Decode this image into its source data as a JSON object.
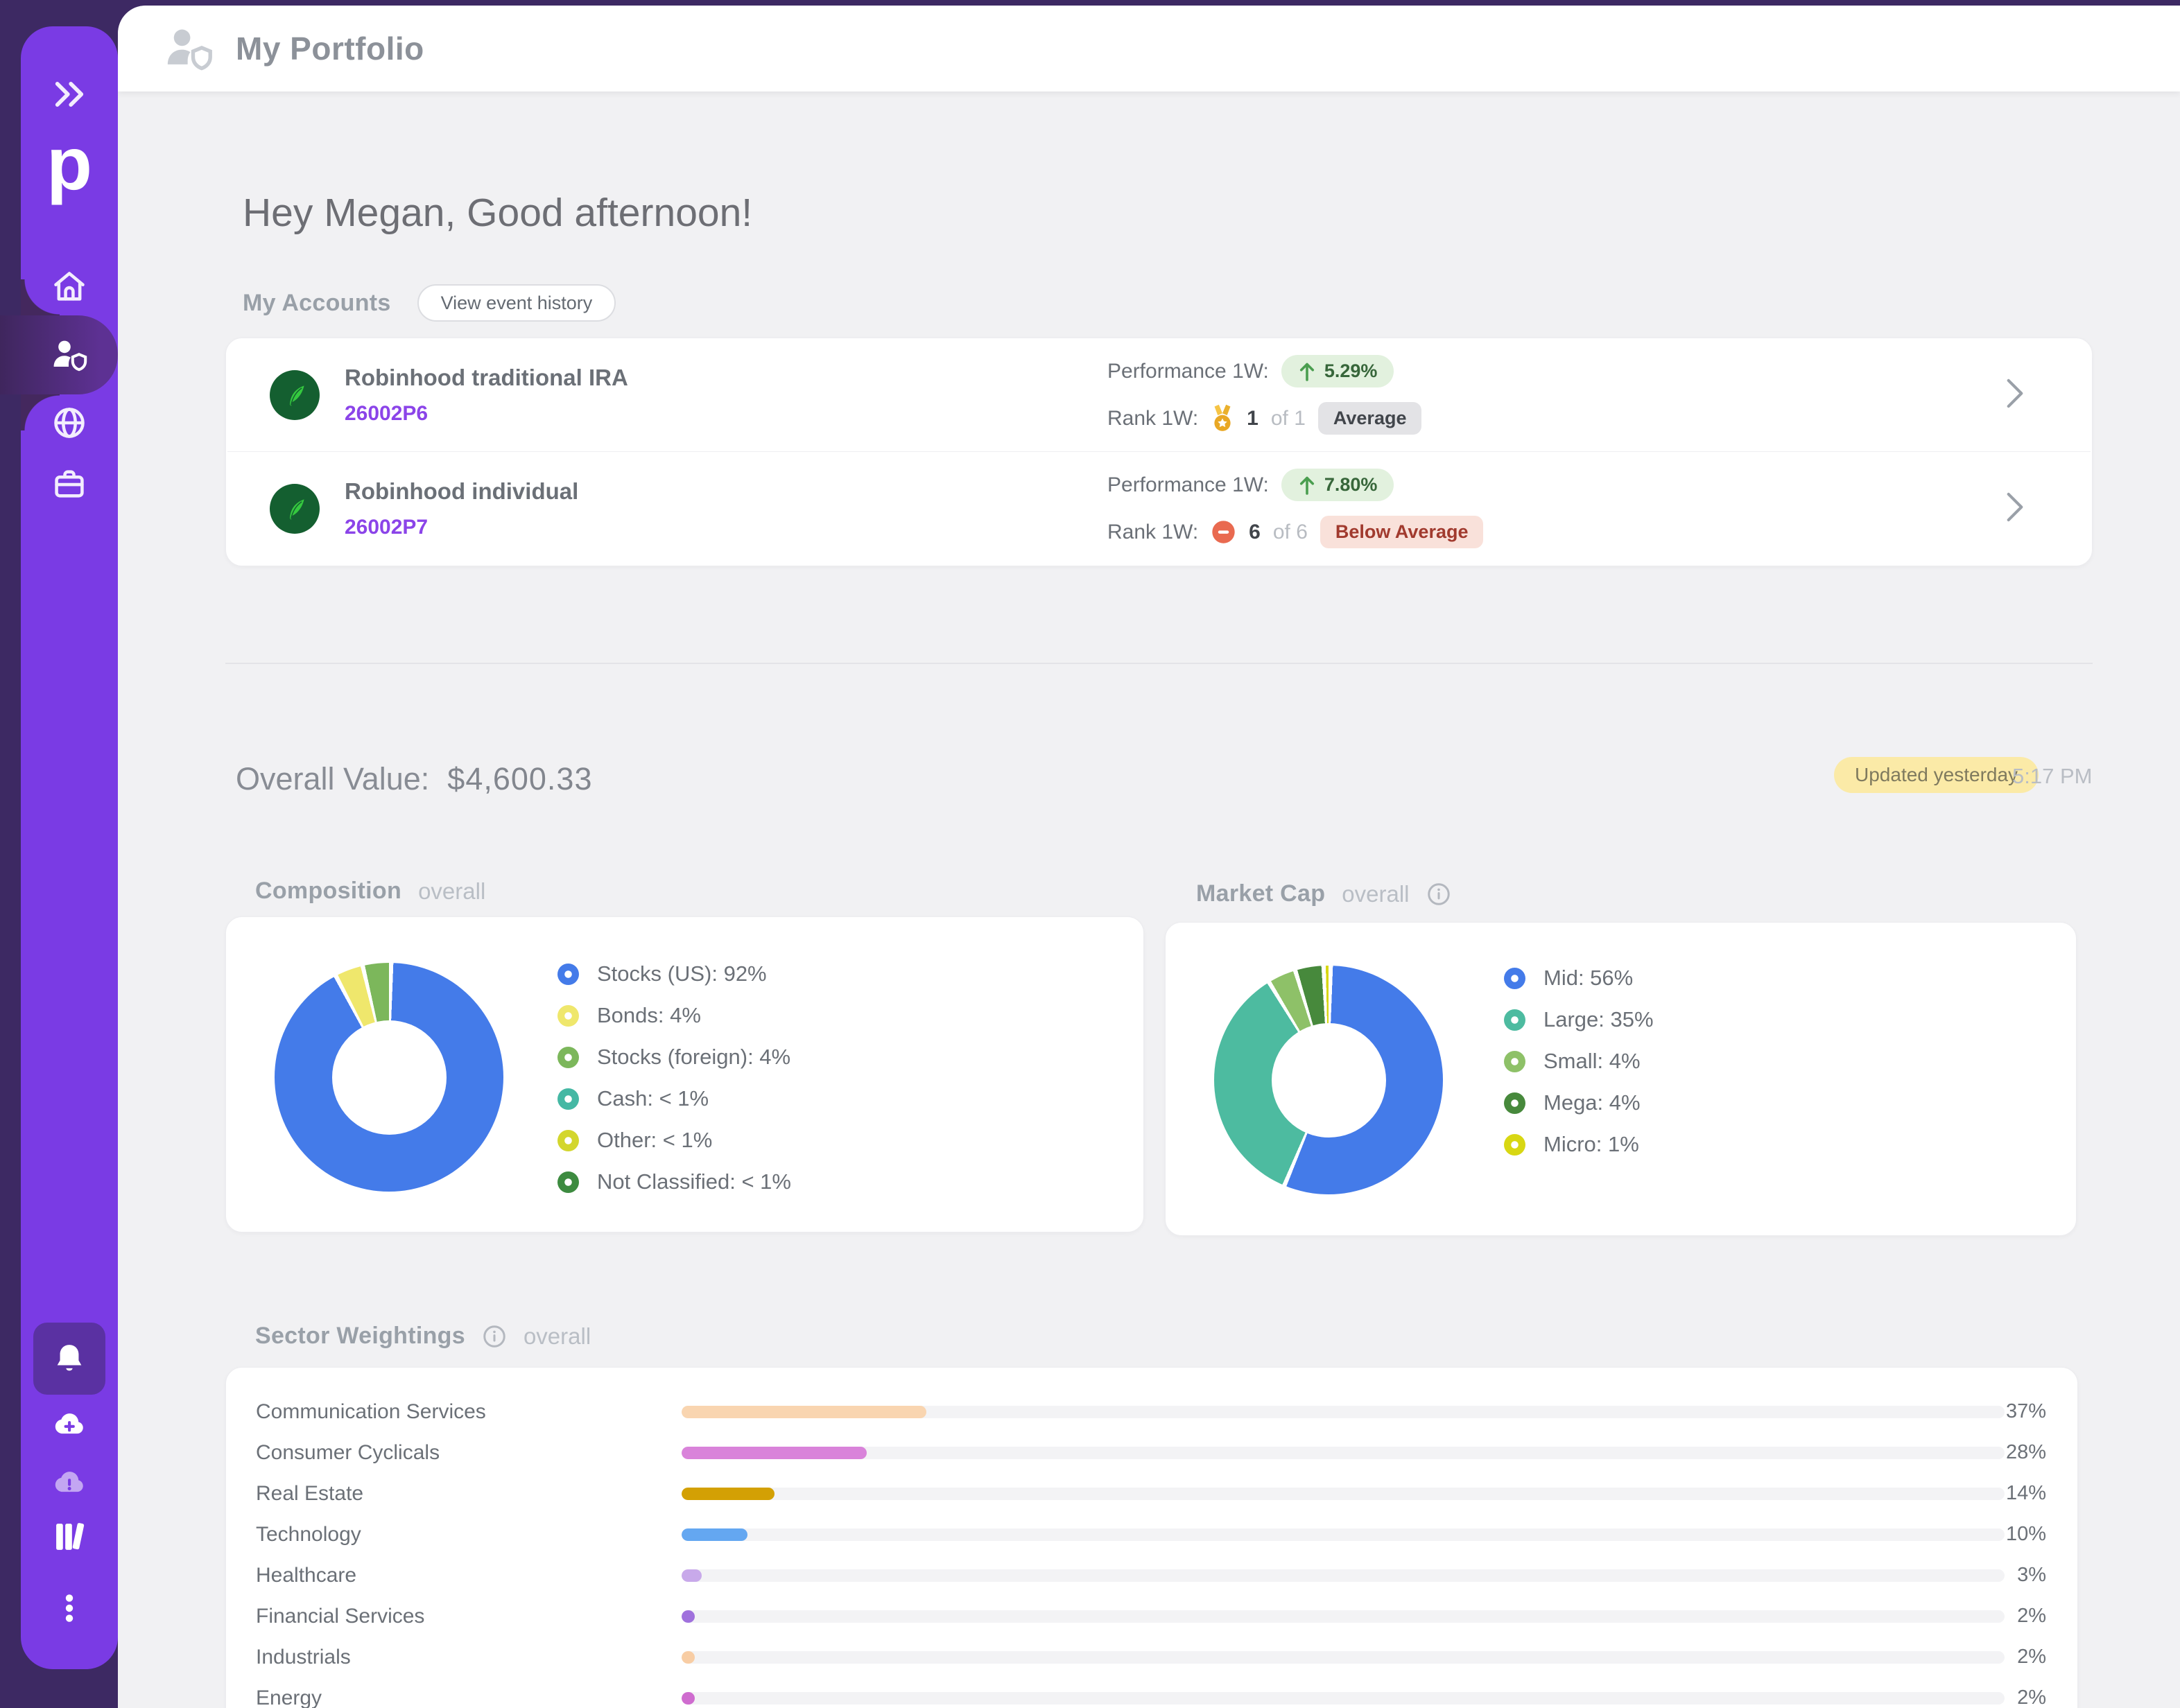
{
  "sidebar": {
    "logo": "p",
    "icons": [
      "chevrons-right",
      "home",
      "person-shield",
      "globe",
      "briefcase",
      "bell",
      "cloud-plus",
      "cloud-alert",
      "library",
      "ellipsis-vertical"
    ],
    "active_item": "person-shield"
  },
  "header": {
    "title": "My Portfolio"
  },
  "greeting": "Hey Megan, Good afternoon!",
  "accounts": {
    "title": "My Accounts",
    "view_history_button": "View event history",
    "rows": [
      {
        "broker": "Robinhood",
        "name": "Robinhood traditional IRA",
        "number": "26002P6",
        "performance_label": "Performance 1W:",
        "performance_value": "5.29%",
        "performance_direction": "up",
        "rank_label": "Rank 1W:",
        "rank_icon": "medal",
        "rank_value": "1",
        "rank_total": "of 1",
        "badge": "Average",
        "badge_variant": "neutral"
      },
      {
        "broker": "Robinhood",
        "name": "Robinhood individual",
        "number": "26002P7",
        "performance_label": "Performance 1W:",
        "performance_value": "7.80%",
        "performance_direction": "up",
        "rank_label": "Rank 1W:",
        "rank_icon": "minus-circle",
        "rank_value": "6",
        "rank_total": "of 6",
        "badge": "Below Average",
        "badge_variant": "negative"
      }
    ]
  },
  "overview": {
    "label": "Overall Value:",
    "value": "$4,600.33",
    "updated_badge": "Updated yesterday",
    "updated_time": "5:17 PM"
  },
  "composition": {
    "title": "Composition",
    "subtitle": "overall",
    "items": [
      {
        "label": "Stocks (US): 92%",
        "value": 92,
        "color": "#447be9"
      },
      {
        "label": "Bonds: 4%",
        "value": 4,
        "color": "#efe76c"
      },
      {
        "label": "Stocks (foreign): 4%",
        "value": 4,
        "color": "#7cb75b"
      },
      {
        "label": "Cash: < 1%",
        "value": 0,
        "color": "#45b8a4"
      },
      {
        "label": "Other: < 1%",
        "value": 0,
        "color": "#d3d62e"
      },
      {
        "label": "Not Classified: < 1%",
        "value": 0,
        "color": "#3d8b40"
      }
    ]
  },
  "market_cap": {
    "title": "Market Cap",
    "subtitle": "overall",
    "items": [
      {
        "label": "Mid: 56%",
        "value": 56,
        "color": "#447be9"
      },
      {
        "label": "Large: 35%",
        "value": 35,
        "color": "#4dbba0"
      },
      {
        "label": "Small: 4%",
        "value": 4,
        "color": "#8ec168"
      },
      {
        "label": "Mega: 4%",
        "value": 4,
        "color": "#47893c"
      },
      {
        "label": "Micro: 1%",
        "value": 1,
        "color": "#d8d713"
      }
    ]
  },
  "sector_weightings": {
    "title": "Sector Weightings",
    "subtitle": "overall",
    "rows": [
      {
        "label": "Communication Services",
        "pct": 37,
        "color": "#f9d5b0"
      },
      {
        "label": "Consumer Cyclicals",
        "pct": 28,
        "color": "#d983da"
      },
      {
        "label": "Real Estate",
        "pct": 14,
        "color": "#d3a004"
      },
      {
        "label": "Technology",
        "pct": 10,
        "color": "#64a7f1"
      },
      {
        "label": "Healthcare",
        "pct": 3,
        "color": "#c8a9ea"
      },
      {
        "label": "Financial Services",
        "pct": 2,
        "color": "#a071dd"
      },
      {
        "label": "Industrials",
        "pct": 2,
        "color": "#f8cda4"
      },
      {
        "label": "Energy",
        "pct": 2,
        "color": "#cf6ccf"
      }
    ]
  },
  "chart_data": [
    {
      "type": "pie",
      "title": "Composition overall",
      "categories": [
        "Stocks (US)",
        "Bonds",
        "Stocks (foreign)",
        "Cash",
        "Other",
        "Not Classified"
      ],
      "values": [
        92,
        4,
        4,
        0.3,
        0.3,
        0.3
      ],
      "legend_position": "right"
    },
    {
      "type": "pie",
      "title": "Market Cap overall",
      "categories": [
        "Mid",
        "Large",
        "Small",
        "Mega",
        "Micro"
      ],
      "values": [
        56,
        35,
        4,
        4,
        1
      ],
      "legend_position": "right"
    },
    {
      "type": "bar",
      "title": "Sector Weightings overall",
      "categories": [
        "Communication Services",
        "Consumer Cyclicals",
        "Real Estate",
        "Technology",
        "Healthcare",
        "Financial Services",
        "Industrials",
        "Energy"
      ],
      "values": [
        37,
        28,
        14,
        10,
        3,
        2,
        2,
        2
      ],
      "xlabel": "",
      "ylabel": "",
      "xlim": [
        0,
        100
      ]
    }
  ],
  "colors": {
    "sidebar_rail": "#3d2963",
    "sidebar_accent": "#7a3be4",
    "positive_pill_bg": "#e2f1de",
    "positive_green": "#4a9e4f",
    "negative_red": "#e96a50",
    "updated_badge_bg": "#fbeaa7",
    "link_purple": "#8b44e9"
  }
}
